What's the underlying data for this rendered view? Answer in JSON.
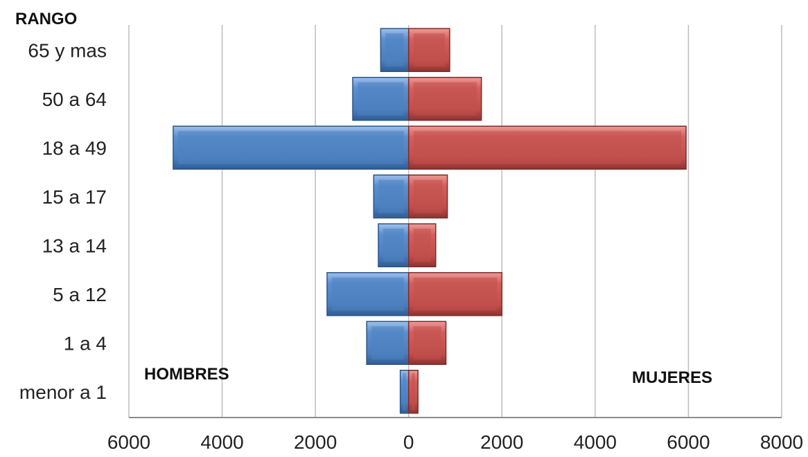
{
  "chart_data": {
    "type": "bar",
    "orientation": "horizontal",
    "subtype": "population-pyramid",
    "category_header": "RANGO",
    "categories": [
      "menor a 1",
      "1 a 4",
      "5 a 12",
      "13 a 14",
      "15 a 17",
      "18 a  49",
      "50 a 64",
      "65 y mas"
    ],
    "series": [
      {
        "values": [
          180,
          900,
          1750,
          650,
          750,
          5050,
          1200,
          600
        ],
        "color": "#4f81bd",
        "side": "left"
      },
      {
        "values": [
          200,
          800,
          2000,
          580,
          830,
          5950,
          1560,
          880
        ],
        "color": "#c0504d",
        "side": "right"
      }
    ],
    "annotations": {
      "left": "HOMBRES",
      "right": "MUJERES"
    },
    "xlim": [
      -6000,
      8000
    ],
    "xticks": [
      -6000,
      -4000,
      -2000,
      0,
      2000,
      4000,
      6000,
      8000
    ],
    "xtick_labels": [
      "6000",
      "4000",
      "2000",
      "0",
      "2000",
      "4000",
      "6000",
      "8000"
    ],
    "grid": true,
    "legend": "none"
  }
}
